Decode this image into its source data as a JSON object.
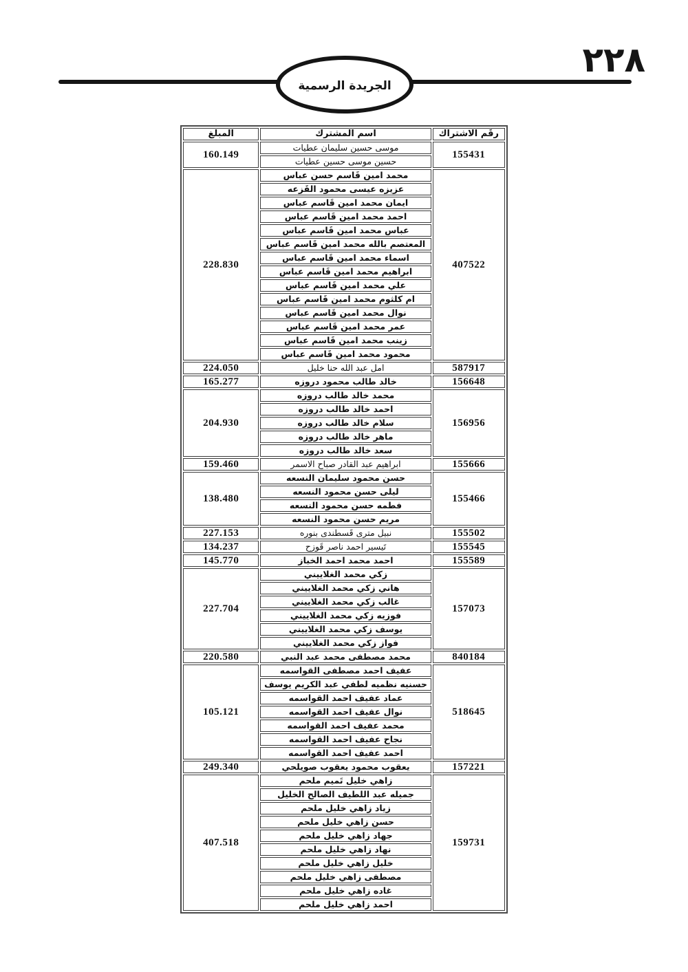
{
  "page": {
    "number_arabic": "٢٢٨",
    "banner_title": "الجريدة الرسمية"
  },
  "table": {
    "headers": {
      "amount": "المبلغ",
      "name": "اسم المشترك",
      "number": "رقَم الاشتراك"
    },
    "groups": [
      {
        "number": "155431",
        "amount": "160.149",
        "bold": false,
        "names": [
          "موسى حسين سليمان عطيات",
          "حسين موسى حسين عطيات"
        ]
      },
      {
        "number": "407522",
        "amount": "228.830",
        "bold": true,
        "names": [
          "محمد امين قَاسم حسن عباس",
          "عزيزه عيسى محمود القَزعه",
          "ايمان محمد امين قَاسم عباس",
          "احمد محمد امين قَاسم عباس",
          "عباس محمد امين قَاسم عباس",
          "المعتصم بالله محمد امين قَاسم عباس",
          "اسماء محمد امين قَاسم عباس",
          "ابراهيم محمد امين قَاسم عباس",
          "علي محمد امين قَاسم عباس",
          "ام كلثوم محمد امين قَاسم عباس",
          "نوال محمد امين قَاسم عباس",
          "عمر محمد امين قَاسم عباس",
          "زينب محمد امين قَاسم عباس",
          "محمود محمد امين قَاسم عباس"
        ]
      },
      {
        "number": "587917",
        "amount": "224.050",
        "bold": false,
        "names": [
          "امل عبد الله حنا خليل"
        ]
      },
      {
        "number": "156648",
        "amount": "165.277",
        "bold": true,
        "names": [
          "خالد طالب محمود دروزه"
        ]
      },
      {
        "number": "156956",
        "amount": "204.930",
        "bold": true,
        "names": [
          "محمد خالد طالب دروزه",
          "احمد خالد طالب دروزه",
          "سلام خالد طالب دروزه",
          "ماهر خالد طالب دروزه",
          "سعد خالد طالب دروزه"
        ]
      },
      {
        "number": "155666",
        "amount": "159.460",
        "bold": false,
        "names": [
          "ابراهيم عبد القادر صباح الاسمر"
        ]
      },
      {
        "number": "155466",
        "amount": "138.480",
        "bold": true,
        "names": [
          "حسن محمود سليمان النسعه",
          "ليلى حسن محمود النسعه",
          "فطمه حسن محمود النسعه",
          "مريم حسن محمود النسعه"
        ]
      },
      {
        "number": "155502",
        "amount": "227.153",
        "bold": false,
        "names": [
          "نبيل مترى قَسطندى بنوره"
        ]
      },
      {
        "number": "155545",
        "amount": "134.237",
        "bold": false,
        "names": [
          "تَيسير احمد ناصر قَوزح"
        ]
      },
      {
        "number": "155589",
        "amount": "145.770",
        "bold": true,
        "names": [
          "احمد محمد احمد الخباز"
        ]
      },
      {
        "number": "157073",
        "amount": "227.704",
        "bold": true,
        "names": [
          "زكي محمد الغلاييني",
          "هاني زكي محمد الغلاييني",
          "غالب زكي محمد الغلاييني",
          "فوزيه زكي محمد الغلاييني",
          "يوسف زكي محمد الغلاييني",
          "فواز زكي محمد الغلاييني"
        ]
      },
      {
        "number": "840184",
        "amount": "220.580",
        "bold": true,
        "names": [
          "محمد مصطفى محمد عبد النبي"
        ]
      },
      {
        "number": "518645",
        "amount": "105.121",
        "bold": true,
        "names": [
          "عفيف احمد مصطفى القواسمه",
          "حسنيه نظميه لطفي عبد الكريم يوسف",
          "عماد عفيف احمد القواسمه",
          "نوال عفيف احمد القواسمه",
          "محمد عفيف احمد القواسمه",
          "نجاح عفيف احمد القواسمه",
          "احمد عفيف احمد القواسمه"
        ]
      },
      {
        "number": "157221",
        "amount": "249.340",
        "bold": true,
        "names": [
          "يعقوب محمود يعقوب صويلحي"
        ]
      },
      {
        "number": "159731",
        "amount": "407.518",
        "bold": true,
        "names": [
          "زاهي خليل تَميم ملحم",
          "جميله عبد اللطيف الصالح الخليل",
          "زياد زاهي خليل ملحم",
          "حسن زاهي خليل ملحم",
          "جهاد زاهي خليل ملحم",
          "نهاد زاهي خليل ملحم",
          "خليل زاهي خليل ملحم",
          "مصطفى زاهي خليل ملحم",
          "غاده زاهي خليل ملحم",
          "احمد زاهي خليل ملحم"
        ]
      }
    ]
  }
}
